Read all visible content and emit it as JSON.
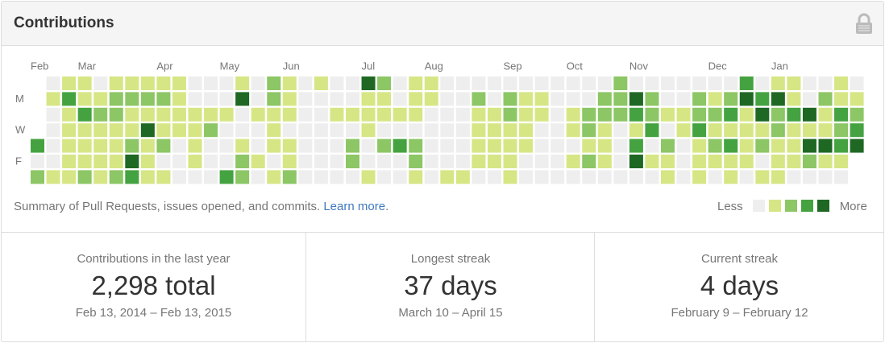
{
  "header": {
    "title": "Contributions"
  },
  "calendar": {
    "months": [
      "Feb",
      "Mar",
      "Apr",
      "May",
      "Jun",
      "Jul",
      "Aug",
      "Sep",
      "Oct",
      "Nov",
      "Dec",
      "Jan"
    ],
    "days": [
      "M",
      "W",
      "F"
    ],
    "colors": [
      "#eeeeee",
      "#d6e685",
      "#8cc665",
      "#44a340",
      "#1e6823"
    ],
    "levels": [
      [
        null,
        0,
        1,
        1,
        0,
        1,
        1,
        1,
        1,
        1,
        0,
        0,
        0,
        1,
        0,
        2,
        1,
        0,
        1,
        0,
        0,
        4,
        2,
        0,
        1,
        1,
        0,
        0,
        0,
        0,
        0,
        0,
        0,
        0,
        0,
        0,
        0,
        2,
        0,
        0,
        0,
        0,
        0,
        0,
        0,
        3,
        0,
        1,
        1,
        0,
        0,
        1,
        0
      ],
      [
        null,
        1,
        3,
        1,
        1,
        2,
        2,
        2,
        2,
        1,
        0,
        0,
        0,
        4,
        0,
        2,
        1,
        0,
        0,
        0,
        0,
        1,
        1,
        0,
        1,
        1,
        0,
        0,
        2,
        0,
        2,
        1,
        1,
        0,
        0,
        0,
        2,
        2,
        4,
        2,
        0,
        0,
        2,
        1,
        2,
        4,
        3,
        4,
        1,
        0,
        2,
        1,
        1
      ],
      [
        null,
        0,
        1,
        3,
        2,
        2,
        1,
        1,
        1,
        1,
        1,
        1,
        1,
        0,
        1,
        1,
        1,
        0,
        0,
        1,
        1,
        1,
        1,
        1,
        1,
        0,
        0,
        0,
        1,
        1,
        2,
        1,
        1,
        0,
        1,
        2,
        2,
        2,
        3,
        2,
        1,
        1,
        2,
        2,
        3,
        1,
        4,
        2,
        3,
        4,
        1,
        3,
        2
      ],
      [
        null,
        0,
        1,
        1,
        1,
        1,
        1,
        4,
        1,
        1,
        1,
        2,
        0,
        0,
        0,
        1,
        0,
        0,
        0,
        0,
        0,
        1,
        0,
        0,
        0,
        0,
        0,
        0,
        1,
        1,
        1,
        1,
        0,
        0,
        1,
        2,
        1,
        0,
        1,
        3,
        0,
        1,
        3,
        1,
        1,
        1,
        1,
        2,
        1,
        1,
        1,
        2,
        3
      ],
      [
        3,
        0,
        1,
        1,
        1,
        1,
        2,
        1,
        2,
        0,
        1,
        0,
        0,
        1,
        0,
        1,
        1,
        0,
        0,
        0,
        2,
        0,
        2,
        3,
        2,
        0,
        0,
        0,
        1,
        1,
        1,
        1,
        0,
        0,
        0,
        1,
        1,
        0,
        3,
        0,
        2,
        0,
        1,
        2,
        3,
        1,
        2,
        1,
        1,
        4,
        4,
        3,
        4
      ],
      [
        0,
        0,
        1,
        1,
        1,
        1,
        4,
        1,
        0,
        0,
        1,
        0,
        0,
        2,
        1,
        0,
        1,
        0,
        0,
        0,
        2,
        0,
        0,
        0,
        2,
        0,
        0,
        0,
        1,
        1,
        1,
        0,
        0,
        0,
        1,
        2,
        1,
        0,
        4,
        1,
        1,
        0,
        1,
        1,
        1,
        1,
        0,
        1,
        1,
        2,
        1,
        1,
        null
      ],
      [
        2,
        1,
        1,
        2,
        1,
        2,
        3,
        1,
        1,
        0,
        0,
        0,
        3,
        2,
        0,
        1,
        2,
        0,
        0,
        0,
        0,
        1,
        0,
        0,
        1,
        0,
        1,
        1,
        0,
        0,
        1,
        0,
        0,
        0,
        0,
        0,
        0,
        0,
        0,
        0,
        1,
        0,
        1,
        0,
        1,
        0,
        1,
        1,
        0,
        0,
        0,
        0,
        null
      ]
    ]
  },
  "summary": {
    "text": "Summary of Pull Requests, issues opened, and commits.",
    "link": "Learn more",
    "link_suffix": "."
  },
  "legend": {
    "less": "Less",
    "more": "More"
  },
  "stats": [
    {
      "label": "Contributions in the last year",
      "value": "2,298 total",
      "range": "Feb 13, 2014 – Feb 13, 2015"
    },
    {
      "label": "Longest streak",
      "value": "37 days",
      "range": "March 10 – April 15"
    },
    {
      "label": "Current streak",
      "value": "4 days",
      "range": "February 9 – February 12"
    }
  ]
}
